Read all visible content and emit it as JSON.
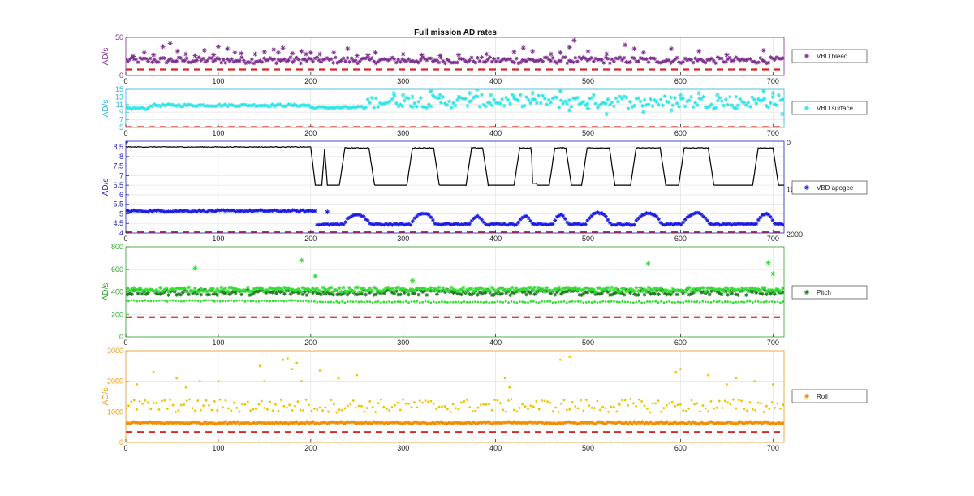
{
  "figure": {
    "title": "Full mission AD rates"
  },
  "chart_data": [
    {
      "type": "scatter",
      "ylabel": "AD/s",
      "xlim": [
        0,
        712
      ],
      "ylim": [
        0,
        50
      ],
      "xticks": [
        0,
        100,
        200,
        300,
        400,
        500,
        600,
        700
      ],
      "yticks": [
        0,
        50
      ],
      "grid": true,
      "legend": "right",
      "axis_color": "#7E2F8E",
      "series": [
        {
          "name": "VBD bleed",
          "marker": "asterisk",
          "color": "#7E2F8E",
          "base": 20,
          "noise": 4,
          "segments": [],
          "x": [
            8,
            20,
            30,
            40,
            48,
            56,
            65,
            75,
            85,
            95,
            100,
            110,
            118,
            125,
            140,
            150,
            160,
            165,
            170,
            180,
            190,
            195,
            200,
            210,
            225,
            240,
            250,
            262,
            270,
            300,
            320,
            340,
            360,
            390,
            420,
            430,
            440,
            460,
            470,
            480,
            485,
            500,
            520,
            540,
            550,
            560,
            590,
            620,
            650,
            690
          ],
          "y": [
            25,
            30,
            27,
            38,
            42,
            32,
            28,
            26,
            33,
            27,
            38,
            35,
            30,
            29,
            28,
            31,
            34,
            30,
            36,
            29,
            32,
            28,
            30,
            28,
            30,
            35,
            26,
            27,
            30,
            28,
            27,
            26,
            27,
            28,
            31,
            36,
            32,
            28,
            30,
            37,
            46,
            32,
            28,
            40,
            35,
            30,
            35,
            32,
            27,
            33
          ]
        },
        {
          "name": "",
          "marker": "dash",
          "color": "#D62728",
          "base": 8,
          "noise": 0,
          "segments": [],
          "x": [],
          "y": []
        }
      ]
    },
    {
      "type": "scatter",
      "ylabel": "AD/s",
      "xlim": [
        0,
        712
      ],
      "ylim": [
        5,
        15
      ],
      "xticks": [
        0,
        100,
        200,
        300,
        400,
        500,
        600,
        700
      ],
      "yticks": [
        5,
        7,
        9,
        11,
        13,
        15
      ],
      "grid": true,
      "legend": "right",
      "axis_color": "#30B3E0",
      "series": [
        {
          "name": "VBD surface",
          "marker": "asterisk",
          "color": "#2EE6E6",
          "base": 0,
          "noise": 0.3,
          "segments": [
            {
              "x0": 0,
              "x1": 25,
              "y": 10
            },
            {
              "x0": 25,
              "x1": 200,
              "y": 10.8
            },
            {
              "x0": 200,
              "x1": 260,
              "y": 10.2
            },
            {
              "x0": 260,
              "x1": 712,
              "y": 11.8,
              "spread": 1.6
            }
          ],
          "x": [
            290,
            300,
            310,
            330,
            340,
            360,
            372,
            380,
            395,
            420,
            440,
            470,
            480,
            500,
            520,
            560,
            590,
            600,
            620,
            640,
            660,
            690,
            700,
            710
          ],
          "y": [
            14,
            13.5,
            13,
            14.5,
            13.5,
            13,
            14,
            15,
            13.5,
            13,
            14,
            14.5,
            9.5,
            10,
            8.5,
            9,
            9.5,
            13.5,
            14,
            13.5,
            10,
            14.5,
            14,
            8.5
          ]
        },
        {
          "name": "",
          "marker": "dash",
          "color": "#D62728",
          "base": 5.1,
          "noise": 0,
          "segments": [],
          "x": [],
          "y": []
        }
      ]
    },
    {
      "type": "scatter",
      "ylabel": "AD/s",
      "xlim": [
        0,
        712
      ],
      "ylim": [
        4,
        8.8
      ],
      "xticks": [
        0,
        100,
        200,
        300,
        400,
        500,
        600,
        700
      ],
      "yticks": [
        4,
        4.5,
        5,
        5.5,
        6,
        6.5,
        7,
        7.5,
        8,
        8.5
      ],
      "y2ticks": [
        "0",
        "10",
        "2000"
      ],
      "grid": true,
      "legend": "right",
      "axis_color": "#1F1FB4",
      "series": [
        {
          "name": "VBD apogee",
          "marker": "asterisk",
          "color": "#1A1AE6",
          "base": 5.15,
          "noise": 0.05,
          "segments": [],
          "humps": [
            {
              "x0": 235,
              "x1": 265,
              "y": 4.95
            },
            {
              "x0": 308,
              "x1": 335,
              "y": 5.05
            },
            {
              "x0": 372,
              "x1": 388,
              "y": 4.85
            },
            {
              "x0": 424,
              "x1": 440,
              "y": 4.9
            },
            {
              "x0": 462,
              "x1": 478,
              "y": 4.95
            },
            {
              "x0": 497,
              "x1": 525,
              "y": 5.05
            },
            {
              "x0": 550,
              "x1": 580,
              "y": 5.05
            },
            {
              "x0": 602,
              "x1": 632,
              "y": 5.05
            },
            {
              "x0": 682,
              "x1": 702,
              "y": 5
            }
          ],
          "x": [
            0,
            218
          ],
          "y": [
            8.75,
            5.1
          ]
        },
        {
          "name": "",
          "marker": "line",
          "color": "#000000",
          "base": 8.55,
          "noise": 0.03,
          "segments": [],
          "x": [],
          "y": []
        },
        {
          "name": "",
          "marker": "dash",
          "color": "#D62728",
          "base": 4.05,
          "noise": 0,
          "segments": [],
          "x": [],
          "y": []
        }
      ]
    },
    {
      "type": "scatter",
      "ylabel": "AD/s",
      "xlim": [
        0,
        712
      ],
      "ylim": [
        0,
        800
      ],
      "xticks": [
        0,
        100,
        200,
        300,
        400,
        500,
        600,
        700
      ],
      "yticks": [
        0,
        200,
        400,
        600,
        800
      ],
      "grid": true,
      "legend": "right",
      "axis_color": "#2CA02C",
      "series": [
        {
          "name": "Pitch",
          "marker": "asterisk",
          "color": "#1E7A1E",
          "base": 395,
          "noise": 25,
          "segments": [],
          "x": [],
          "y": []
        },
        {
          "name": "",
          "marker": "asterisk",
          "color": "#33DD33",
          "base": 420,
          "noise": 20,
          "segments": [],
          "x": [
            75,
            190,
            205,
            310,
            565,
            695,
            700
          ],
          "y": [
            610,
            680,
            540,
            500,
            650,
            660,
            560
          ]
        },
        {
          "name": "",
          "marker": "dot",
          "color": "#33DD33",
          "base": 0,
          "noise": 6,
          "segments": [
            {
              "x0": 0,
              "x1": 200,
              "y": 320
            },
            {
              "x0": 200,
              "x1": 712,
              "y": 310
            }
          ],
          "x": [],
          "y": []
        },
        {
          "name": "",
          "marker": "dash",
          "color": "#D62728",
          "base": 175,
          "noise": 0,
          "segments": [],
          "x": [],
          "y": []
        }
      ]
    },
    {
      "type": "scatter",
      "ylabel": "AD/s",
      "xlim": [
        0,
        712
      ],
      "ylim": [
        0,
        3000
      ],
      "xticks": [
        0,
        100,
        200,
        300,
        400,
        500,
        600,
        700
      ],
      "yticks": [
        0,
        1000,
        2000,
        3000
      ],
      "grid": true,
      "legend": "right",
      "axis_color": "#E69A1F",
      "series": [
        {
          "name": "Roll",
          "marker": "asterisk",
          "color": "#F28C00",
          "base": 640,
          "noise": 35,
          "segments": [],
          "x": [],
          "y": []
        },
        {
          "name": "",
          "marker": "dot",
          "color": "#EDC400",
          "base": 1200,
          "noise": 220,
          "segments": [],
          "x": [
            12,
            30,
            55,
            65,
            80,
            100,
            145,
            150,
            170,
            175,
            180,
            185,
            190,
            210,
            230,
            250,
            410,
            415,
            470,
            480,
            595,
            600,
            630,
            650,
            660,
            680,
            700
          ],
          "y": [
            1900,
            2300,
            2100,
            1800,
            2000,
            2000,
            2500,
            2000,
            2700,
            2750,
            2400,
            2600,
            2000,
            2350,
            2100,
            2200,
            2100,
            1800,
            2700,
            2800,
            2300,
            2400,
            2200,
            1900,
            2100,
            2000,
            1900
          ]
        },
        {
          "name": "",
          "marker": "dash",
          "color": "#D62728",
          "base": 340,
          "noise": 0,
          "segments": [],
          "x": [],
          "y": []
        }
      ]
    }
  ]
}
